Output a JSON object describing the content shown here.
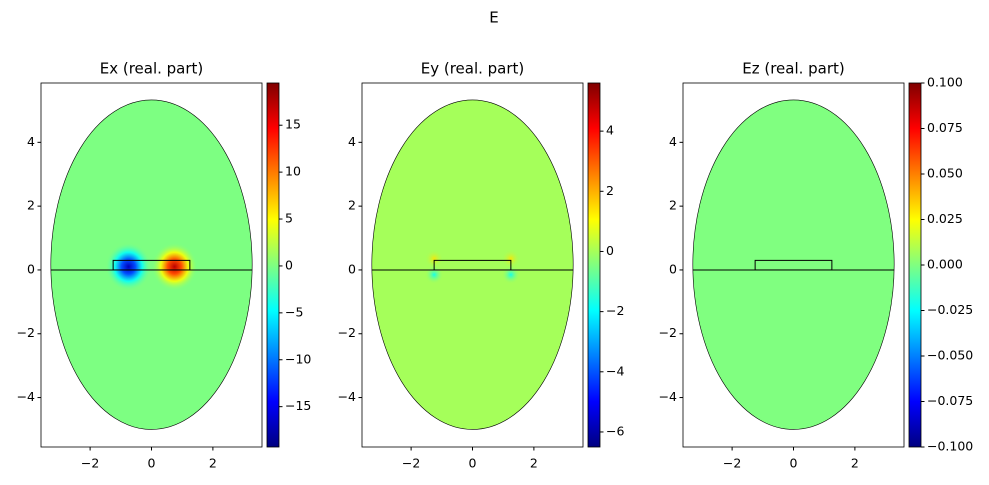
{
  "title": "E",
  "chart_data": [
    {
      "type": "field",
      "title": "Ex (real. part)",
      "colormap": "jet",
      "xlim": [
        -3.6,
        3.6
      ],
      "ylim": [
        -5.55,
        5.86
      ],
      "xticks": [
        {
          "value": -2,
          "label": "−2"
        },
        0,
        2
      ],
      "yticks": [
        {
          "value": -4,
          "label": "−4"
        },
        {
          "value": -2,
          "label": "−2"
        },
        0,
        2,
        4
      ],
      "clim": [
        -19.3,
        19.5
      ],
      "cticks": [
        {
          "value": -15,
          "label": "−15"
        },
        {
          "value": -10,
          "label": "−10"
        },
        {
          "value": -5,
          "label": "−5"
        },
        0,
        5,
        10,
        15
      ]
    },
    {
      "type": "field",
      "title": "Ey (real. part)",
      "colormap": "jet",
      "xlim": [
        -3.6,
        3.6
      ],
      "ylim": [
        -5.55,
        5.86
      ],
      "xticks": [
        {
          "value": -2,
          "label": "−2"
        },
        0,
        2
      ],
      "yticks": [
        {
          "value": -4,
          "label": "−4"
        },
        {
          "value": -2,
          "label": "−2"
        },
        0,
        2,
        4
      ],
      "clim": [
        -6.5,
        5.6
      ],
      "cticks": [
        {
          "value": -6,
          "label": "−6"
        },
        {
          "value": -4,
          "label": "−4"
        },
        {
          "value": -2,
          "label": "−2"
        },
        0,
        2,
        4
      ]
    },
    {
      "type": "field",
      "title": "Ez (real. part)",
      "colormap": "jet",
      "xlim": [
        -3.6,
        3.6
      ],
      "ylim": [
        -5.55,
        5.86
      ],
      "xticks": [
        {
          "value": -2,
          "label": "−2"
        },
        0,
        2
      ],
      "yticks": [
        {
          "value": -4,
          "label": "−4"
        },
        {
          "value": -2,
          "label": "−2"
        },
        0,
        2,
        4
      ],
      "clim": [
        -0.1,
        0.1
      ],
      "cticks": [
        {
          "value": -0.1,
          "label": "−0.100"
        },
        {
          "value": -0.075,
          "label": "−0.075"
        },
        {
          "value": -0.05,
          "label": "−0.050"
        },
        {
          "value": -0.025,
          "label": "−0.025"
        },
        {
          "value": 0,
          "label": "0.000"
        },
        {
          "value": 0.025,
          "label": "0.025"
        },
        {
          "value": 0.05,
          "label": "0.050"
        },
        {
          "value": 0.075,
          "label": "0.075"
        },
        {
          "value": 0.1,
          "label": "0.100"
        }
      ]
    }
  ]
}
